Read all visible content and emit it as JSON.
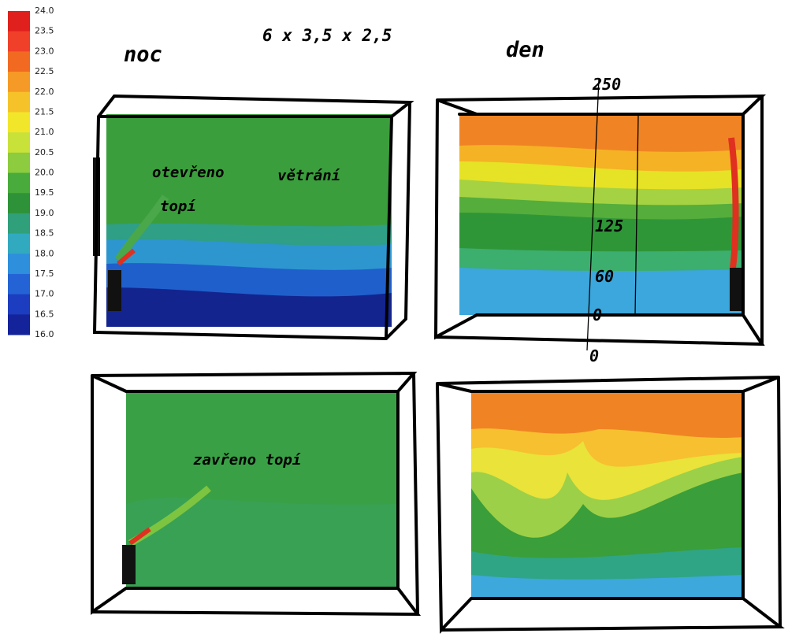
{
  "colorbar": {
    "labels": [
      "24.0",
      "23.5",
      "23.0",
      "22.5",
      "22.0",
      "21.5",
      "21.0",
      "20.5",
      "20.0",
      "19.5",
      "19.0",
      "18.5",
      "18.0",
      "17.5",
      "17.0",
      "16.5",
      "16.0"
    ]
  },
  "header": {
    "dimensions": "6 x 3,5 x 2,5",
    "night": "noc",
    "day": "den"
  },
  "panels": {
    "open_label_1": "otevřeno",
    "open_label_2": "větrání",
    "open_label_3": "topí",
    "closed_label": "zavřeno topí"
  },
  "heights": [
    "250",
    "125",
    "60",
    "0",
    "0"
  ]
}
